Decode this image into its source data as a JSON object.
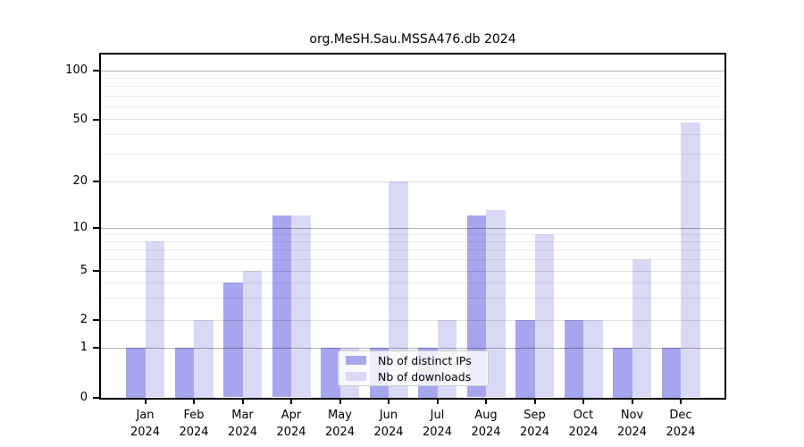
{
  "title": "org.MeSH.Sau.MSSA476.db 2024",
  "chart_data": {
    "type": "bar",
    "title": "org.MeSH.Sau.MSSA476.db 2024",
    "categories": [
      "Jan 2024",
      "Feb 2024",
      "Mar 2024",
      "Apr 2024",
      "May 2024",
      "Jun 2024",
      "Jul 2024",
      "Aug 2024",
      "Sep 2024",
      "Oct 2024",
      "Nov 2024",
      "Dec 2024"
    ],
    "months": [
      "Jan",
      "Feb",
      "Mar",
      "Apr",
      "May",
      "Jun",
      "Jul",
      "Aug",
      "Sep",
      "Oct",
      "Nov",
      "Dec"
    ],
    "year": "2024",
    "series": [
      {
        "name": "Nb of distinct IPs",
        "color": "#a6a6ee",
        "values": [
          1,
          1,
          4,
          12,
          1,
          1,
          1,
          12,
          2,
          2,
          1,
          1
        ]
      },
      {
        "name": "Nb of downloads",
        "color": "#d9d9f6",
        "values": [
          8,
          2,
          5,
          12,
          1,
          20,
          2,
          13,
          9,
          2,
          6,
          48
        ]
      }
    ],
    "y_ticks": [
      0,
      1,
      2,
      5,
      10,
      20,
      50,
      100
    ],
    "yscale": "log",
    "ylim": [
      0,
      130
    ],
    "grid": true,
    "legend_position": "lower center"
  },
  "legend": {
    "item1": "Nb of distinct IPs",
    "item2": "Nb of downloads"
  },
  "colors": {
    "ips_bar": "#a6a6ee",
    "downloads_bar": "#d9d9f6"
  }
}
